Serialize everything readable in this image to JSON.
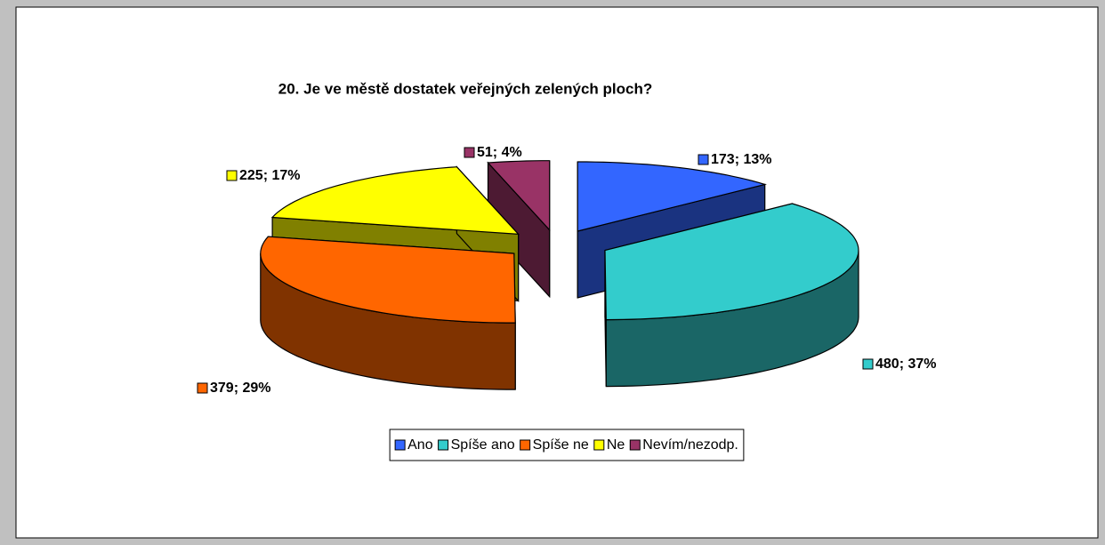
{
  "chart_data": {
    "type": "pie",
    "title": "20. Je ve městě dostatek veřejných zelených ploch?",
    "categories": [
      "Ano",
      "Spíše ano",
      "Spíše ne",
      "Ne",
      "Nevím/nezodp."
    ],
    "values": [
      173,
      480,
      379,
      225,
      51
    ],
    "value_labels": [
      "173; 13%",
      "480; 37%",
      "379; 29%",
      "225; 17%",
      "51; 4%"
    ],
    "colors": [
      "#3366ff",
      "#33cccc",
      "#ff6600",
      "#ffff00",
      "#993366"
    ],
    "legend": "bottom"
  }
}
